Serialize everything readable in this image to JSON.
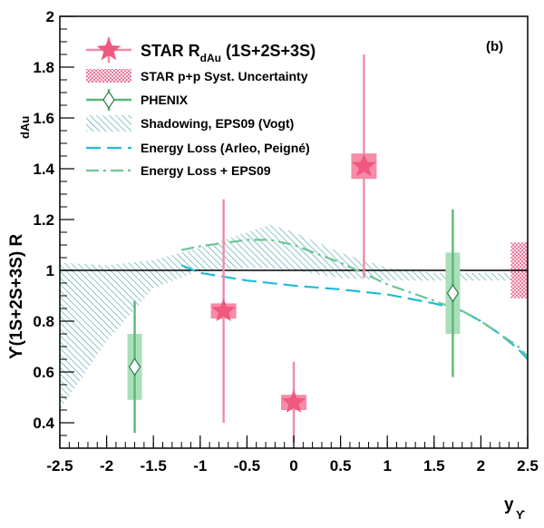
{
  "chart_data": {
    "type": "scatter",
    "panel_label": "(b)",
    "xlabel": "y",
    "xlabel_sub": "ϒ",
    "ylabel": "ϒ(1S+2S+3S) R",
    "ylabel_sub": "dAu",
    "xlim": [
      -2.5,
      2.5
    ],
    "ylim": [
      0.3,
      2.0
    ],
    "x_ticks": [
      -2.5,
      -2,
      -1.5,
      -1,
      -0.5,
      0,
      0.5,
      1,
      1.5,
      2,
      2.5
    ],
    "x_tick_labels": [
      "-2.5",
      "-2",
      "-1.5",
      "-1",
      "-0.5",
      "0",
      "0.5",
      "1",
      "1.5",
      "2",
      "2.5"
    ],
    "y_ticks": [
      0.4,
      0.6,
      0.8,
      1.0,
      1.2,
      1.4,
      1.6,
      1.8,
      2.0
    ],
    "y_tick_labels": [
      "0.4",
      "0.6",
      "0.8",
      "1",
      "1.2",
      "1.4",
      "1.6",
      "1.8",
      "2"
    ],
    "reference_line": 1.0,
    "colors": {
      "star": "#f0587f",
      "star_err": "#f08ca5",
      "star_box": "#f58ca8",
      "phenix": "#5ab878",
      "phenix_box": "#a9dfba",
      "shadow": "#4da8ad",
      "eloss": "#22bcd4",
      "eloss_eps": "#6cc596",
      "pp_syst": "#e8608a"
    },
    "series": [
      {
        "name": "STAR R",
        "name_sub": "dAu",
        "name_suffix": " (1S+2S+3S)",
        "points": [
          {
            "x": -0.75,
            "y": 0.84,
            "err_lo": 0.44,
            "err_hi": 0.44,
            "syst_lo": 0.03,
            "syst_hi": 0.03
          },
          {
            "x": 0.0,
            "y": 0.48,
            "err_lo": 0.16,
            "err_hi": 0.16,
            "syst_lo": 0.03,
            "syst_hi": 0.03
          },
          {
            "x": 0.75,
            "y": 1.41,
            "err_lo": 0.44,
            "err_hi": 0.44,
            "syst_lo": 0.05,
            "syst_hi": 0.05
          }
        ]
      },
      {
        "name": "PHENIX",
        "points": [
          {
            "x": -1.7,
            "y": 0.62,
            "err_lo": 0.26,
            "err_hi": 0.26,
            "syst_lo": 0.13,
            "syst_hi": 0.13
          },
          {
            "x": 1.7,
            "y": 0.91,
            "err_lo": 0.33,
            "err_hi": 0.33,
            "syst_lo": 0.16,
            "syst_hi": 0.16
          }
        ]
      },
      {
        "name": "Shadowing, EPS09 (Vogt)",
        "band_x": [
          -2.5,
          -2.0,
          -1.5,
          -1.0,
          -0.5,
          -0.25,
          0.0,
          0.5,
          1.0,
          1.5,
          2.0,
          2.5
        ],
        "band_upper": [
          1.03,
          1.02,
          1.04,
          1.09,
          1.15,
          1.18,
          1.15,
          1.07,
          1.01,
          0.99,
          0.99,
          0.99
        ],
        "band_lower": [
          0.45,
          0.72,
          0.93,
          1.0,
          1.01,
          1.01,
          1.0,
          0.97,
          0.96,
          0.96,
          0.96,
          0.96
        ]
      },
      {
        "name": "Energy Loss (Arleo, Peigné)",
        "x": [
          -1.2,
          -1.0,
          -0.5,
          0.0,
          0.5,
          1.0,
          1.5,
          1.8,
          2.0,
          2.2,
          2.4,
          2.5
        ],
        "y": [
          1.02,
          0.99,
          0.96,
          0.94,
          0.925,
          0.905,
          0.87,
          0.84,
          0.8,
          0.75,
          0.69,
          0.65
        ]
      },
      {
        "name": "Energy Loss + EPS09",
        "x": [
          -1.2,
          -1.0,
          -0.5,
          -0.25,
          0.0,
          0.5,
          1.0,
          1.5,
          1.8,
          2.0,
          2.2,
          2.4,
          2.5
        ],
        "y": [
          1.08,
          1.095,
          1.12,
          1.12,
          1.1,
          1.03,
          0.945,
          0.88,
          0.84,
          0.8,
          0.75,
          0.7,
          0.66
        ]
      },
      {
        "name": "STAR p+p Syst. Uncertainty",
        "box": {
          "x0": 2.32,
          "x1": 2.5,
          "y0": 0.89,
          "y1": 1.11
        }
      }
    ]
  }
}
